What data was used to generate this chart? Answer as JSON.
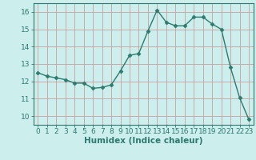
{
  "x": [
    0,
    1,
    2,
    3,
    4,
    5,
    6,
    7,
    8,
    9,
    10,
    11,
    12,
    13,
    14,
    15,
    16,
    17,
    18,
    19,
    20,
    21,
    22,
    23
  ],
  "y": [
    12.5,
    12.3,
    12.2,
    12.1,
    11.9,
    11.9,
    11.6,
    11.65,
    11.8,
    12.6,
    13.5,
    13.6,
    14.9,
    16.1,
    15.4,
    15.2,
    15.2,
    15.7,
    15.7,
    15.3,
    15.0,
    12.8,
    11.05,
    9.8
  ],
  "line_color": "#2d7a6e",
  "marker": "D",
  "marker_size": 2.5,
  "bg_color": "#cceeed",
  "grid_color": "#c8a0a0",
  "xlabel": "Humidex (Indice chaleur)",
  "xlabel_color": "#2d7a6e",
  "xlabel_fontsize": 7.5,
  "tick_color": "#2d7a6e",
  "tick_fontsize": 6.5,
  "ylim": [
    9.5,
    16.5
  ],
  "yticks": [
    10,
    11,
    12,
    13,
    14,
    15,
    16
  ],
  "xlim": [
    -0.5,
    23.5
  ],
  "xticks": [
    0,
    1,
    2,
    3,
    4,
    5,
    6,
    7,
    8,
    9,
    10,
    11,
    12,
    13,
    14,
    15,
    16,
    17,
    18,
    19,
    20,
    21,
    22,
    23
  ]
}
